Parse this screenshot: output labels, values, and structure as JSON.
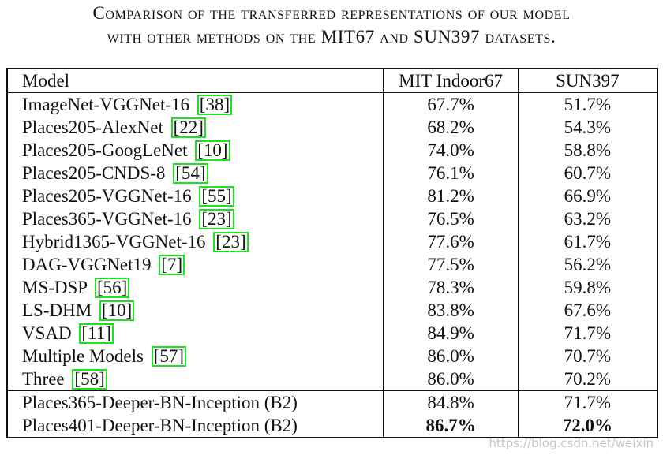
{
  "caption": {
    "line1": "Comparison of the transferred representations of our model",
    "line2": "with other methods on the MIT67 and SUN397 datasets."
  },
  "table": {
    "headers": [
      "Model",
      "MIT Indoor67",
      "SUN397"
    ],
    "rows": [
      {
        "model": "ImageNet-VGGNet-16",
        "cite": "38",
        "mit": "67.7%",
        "sun": "51.7%"
      },
      {
        "model": "Places205-AlexNet",
        "cite": "22",
        "mit": "68.2%",
        "sun": "54.3%"
      },
      {
        "model": "Places205-GoogLeNet",
        "cite": "10",
        "mit": "74.0%",
        "sun": "58.8%"
      },
      {
        "model": "Places205-CNDS-8",
        "cite": "54",
        "mit": "76.1%",
        "sun": "60.7%"
      },
      {
        "model": "Places205-VGGNet-16",
        "cite": "55",
        "mit": "81.2%",
        "sun": "66.9%"
      },
      {
        "model": "Places365-VGGNet-16",
        "cite": "23",
        "mit": "76.5%",
        "sun": "63.2%"
      },
      {
        "model": "Hybrid1365-VGGNet-16",
        "cite": "23",
        "mit": "77.6%",
        "sun": "61.7%"
      },
      {
        "model": "DAG-VGGNet19",
        "cite": "7",
        "mit": "77.5%",
        "sun": "56.2%"
      },
      {
        "model": "MS-DSP",
        "cite": "56",
        "mit": "78.3%",
        "sun": "59.8%"
      },
      {
        "model": "LS-DHM",
        "cite": "10",
        "mit": "83.8%",
        "sun": "67.6%"
      },
      {
        "model": "VSAD",
        "cite": "11",
        "mit": "84.9%",
        "sun": "71.7%"
      },
      {
        "model": "Multiple Models",
        "cite": "57",
        "mit": "86.0%",
        "sun": "70.7%"
      },
      {
        "model": "Three",
        "cite": "58",
        "mit": "86.0%",
        "sun": "70.2%"
      }
    ],
    "ours": [
      {
        "model": "Places365-Deeper-BN-Inception (B2)",
        "mit": "84.8%",
        "sun": "71.7%",
        "bold": false
      },
      {
        "model": "Places401-Deeper-BN-Inception (B2)",
        "mit": "86.7%",
        "sun": "72.0%",
        "bold": true
      }
    ]
  },
  "watermark": "https://blog.csdn.net/weixin",
  "cite_border_color": "#1ee01e"
}
